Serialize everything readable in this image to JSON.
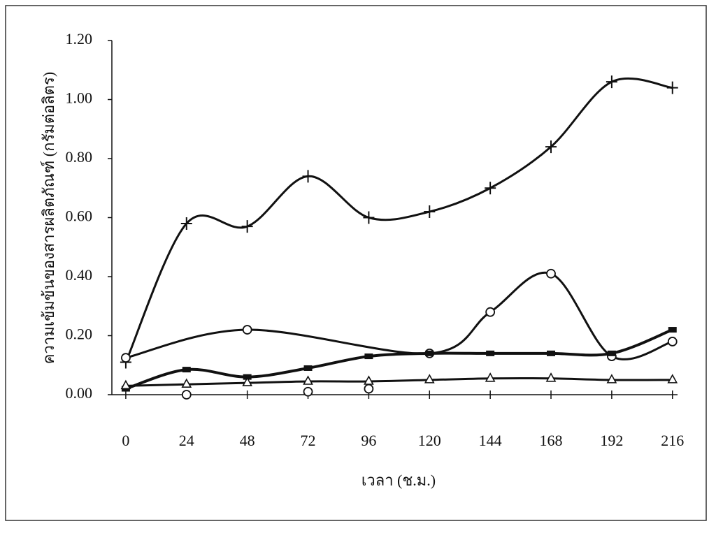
{
  "chart_data": {
    "type": "line",
    "x_label": "เวลา (ช.ม.)",
    "y_label": "ความเข้มข้นของสารผลิตภัณฑ์ (กรัมต่อลิตร)",
    "x": [
      0,
      24,
      48,
      72,
      96,
      120,
      144,
      168,
      192,
      216
    ],
    "xlim": [
      -5.5,
      218
    ],
    "xticks": [
      0,
      24,
      48,
      72,
      96,
      120,
      144,
      168,
      192,
      216
    ],
    "ylim": [
      0,
      1.2
    ],
    "yticks": [
      {
        "value": 0,
        "label": "0.00"
      },
      {
        "value": 0.2,
        "label": "0.20"
      },
      {
        "value": 0.4,
        "label": "0.40"
      },
      {
        "value": 0.6,
        "label": "0.60"
      },
      {
        "value": 0.8,
        "label": "0.80"
      },
      {
        "value": 1.0,
        "label": "1.00"
      },
      {
        "value": 1.2,
        "label": "1.20"
      }
    ],
    "smooth": true,
    "series": [
      {
        "marker": "plus",
        "color": "#111111",
        "line": true,
        "values": [
          0.11,
          0.58,
          0.57,
          0.74,
          0.6,
          0.62,
          0.7,
          0.84,
          1.06,
          1.04
        ]
      },
      {
        "marker": "circle",
        "color": "#111111",
        "line": true,
        "values": [
          0.125,
          null,
          0.22,
          null,
          null,
          0.14,
          0.28,
          0.41,
          0.13,
          0.18
        ]
      },
      {
        "marker": "circle",
        "color": "#111111",
        "line": false,
        "values": [
          null,
          0.0,
          null,
          0.01,
          0.02,
          null,
          null,
          null,
          null,
          null
        ]
      },
      {
        "marker": "square",
        "color": "#111111",
        "line": true,
        "values": [
          0.02,
          0.085,
          0.06,
          0.09,
          0.13,
          0.14,
          0.14,
          0.14,
          0.14,
          0.22
        ]
      },
      {
        "marker": "triangle",
        "color": "#111111",
        "line": true,
        "values": [
          0.03,
          0.035,
          0.04,
          0.045,
          0.045,
          0.05,
          0.055,
          0.055,
          0.05,
          0.05
        ]
      }
    ]
  }
}
